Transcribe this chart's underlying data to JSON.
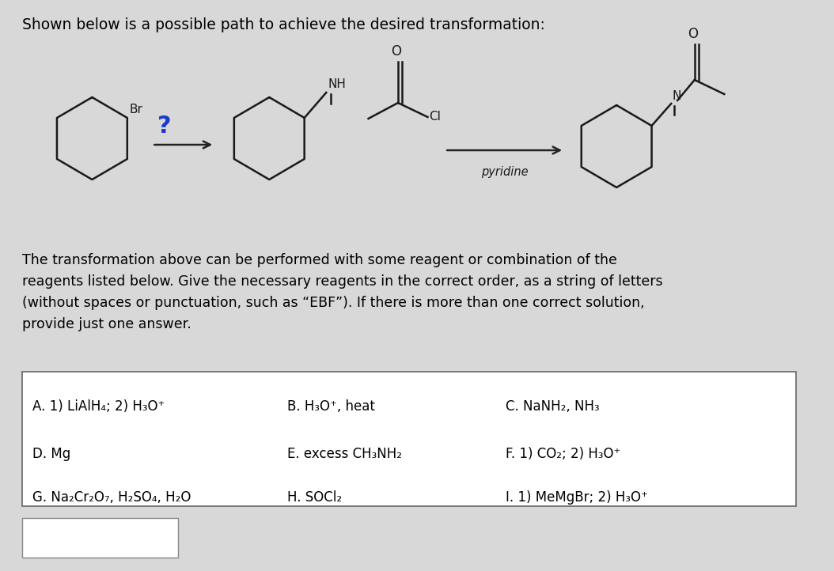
{
  "bg_color": "#d8d8d8",
  "title_text": "Shown below is a possible path to achieve the desired transformation:",
  "description_text": "The transformation above can be performed with some reagent or combination of the\nreagents listed below. Give the necessary reagents in the correct order, as a string of letters\n(without spaces or punctuation, such as “EBF”). If there is more than one correct solution,\nprovide just one answer.",
  "reagents": [
    [
      "A. 1) LiAlH₄; 2) H₃O⁺",
      "B. H₃O⁺, heat",
      "C. NaNH₂, NH₃"
    ],
    [
      "D. Mg",
      "E. excess CH₃NH₂",
      "F. 1) CO₂; 2) H₃O⁺"
    ],
    [
      "G. Na₂Cr₂O₇, H₂SO₄, H₂O",
      "H. SOCl₂",
      "I. 1) MeMgBr; 2) H₃O⁺"
    ]
  ],
  "question_mark_color": "#1a3ccc",
  "mol_lw": 1.8,
  "mol_color": "#1a1a1a"
}
